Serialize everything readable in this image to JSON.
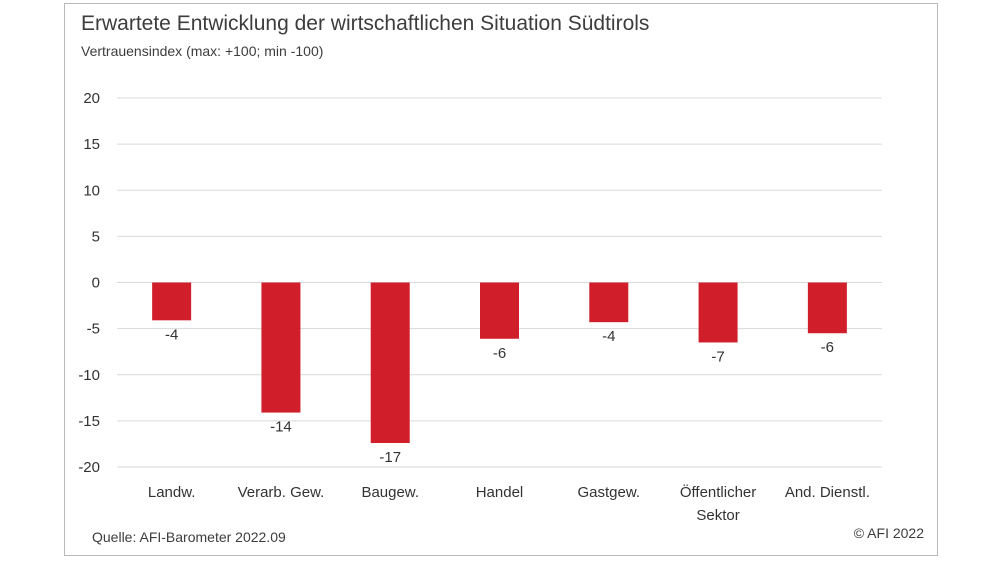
{
  "header": {
    "title": "Erwartete Entwicklung der wirtschaftlichen Situation Südtirols",
    "subtitle": "Vertrauensindex (max: +100; min -100)"
  },
  "footer": {
    "source": "Quelle: AFI-Barometer 2022.09",
    "copyright": "© AFI 2022"
  },
  "colors": {
    "bar": "#d01f2b",
    "grid": "#d9d9d9",
    "text": "#333333"
  },
  "chart_data": {
    "type": "bar",
    "title": "Erwartete Entwicklung der wirtschaftlichen Situation Südtirols",
    "subtitle": "Vertrauensindex (max: +100; min -100)",
    "categories": [
      [
        "Landw."
      ],
      [
        "Verarb. Gew."
      ],
      [
        "Baugew."
      ],
      [
        "Handel"
      ],
      [
        "Gastgew."
      ],
      [
        "Öffentlicher",
        "Sektor"
      ],
      [
        "And. Dienstl."
      ]
    ],
    "values": [
      -4.1,
      -14.1,
      -17.4,
      -6.1,
      -4.3,
      -6.5,
      -5.5
    ],
    "value_labels": [
      "-4",
      "-14",
      "-17",
      "-6",
      "-4",
      "-7",
      "-6"
    ],
    "yticks": [
      "20",
      "15",
      "10",
      "5",
      "0",
      "-5",
      "-10",
      "-15",
      "-20"
    ],
    "ylim": [
      -20,
      20
    ],
    "grid": true,
    "legend": "none"
  }
}
